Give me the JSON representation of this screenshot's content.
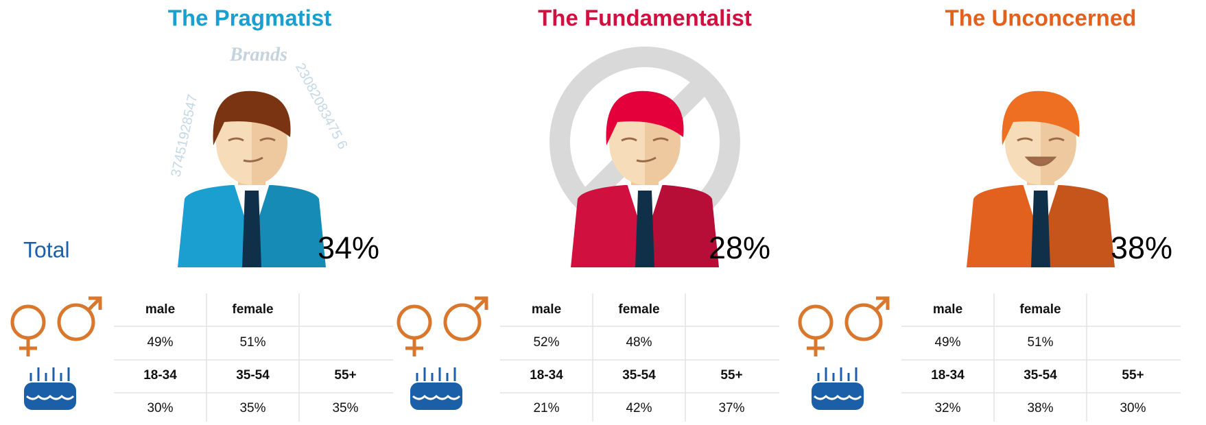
{
  "total_label": "Total",
  "segments": [
    {
      "title": "The Pragmatist",
      "color": "#1a9fd0",
      "hair_color": "#7a3412",
      "share": "34%",
      "gender": {
        "headers": [
          "male",
          "female"
        ],
        "values": [
          "49%",
          "51%"
        ]
      },
      "age": {
        "headers": [
          "18-34",
          "35-54",
          "55+"
        ],
        "values": [
          "30%",
          "35%",
          "35%"
        ]
      },
      "decor": [
        "Brands",
        "37451928547",
        "23082083475 6"
      ]
    },
    {
      "title": "The Fundamentalist",
      "color": "#d0103f",
      "hair_color": "#e4003a",
      "share": "28%",
      "gender": {
        "headers": [
          "male",
          "female"
        ],
        "values": [
          "52%",
          "48%"
        ]
      },
      "age": {
        "headers": [
          "18-34",
          "35-54",
          "55+"
        ],
        "values": [
          "21%",
          "42%",
          "37%"
        ]
      }
    },
    {
      "title": "The Unconcerned",
      "color": "#e2611f",
      "hair_color": "#ef6f22",
      "share": "38%",
      "gender": {
        "headers": [
          "male",
          "female"
        ],
        "values": [
          "49%",
          "51%"
        ]
      },
      "age": {
        "headers": [
          "18-34",
          "35-54",
          "55+"
        ],
        "values": [
          "32%",
          "38%",
          "30%"
        ]
      }
    }
  ]
}
